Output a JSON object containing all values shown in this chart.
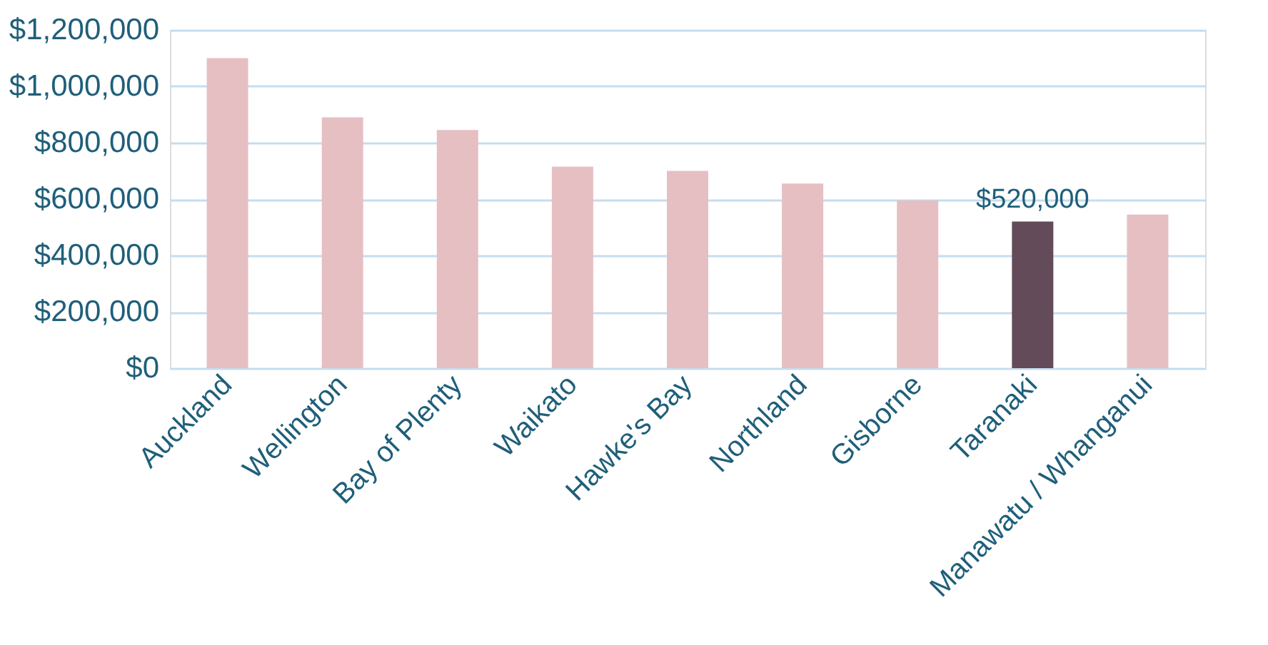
{
  "chart_data": {
    "type": "bar",
    "categories": [
      "Auckland",
      "Wellington",
      "Bay of Plenty",
      "Waikato",
      "Hawke's Bay",
      "Northland",
      "Gisborne",
      "Taranaki",
      "Manawatu / Whanganui"
    ],
    "values": [
      1100000,
      890000,
      845000,
      715000,
      700000,
      655000,
      595000,
      520000,
      545000
    ],
    "colors": [
      "#e6bfc3",
      "#e6bfc3",
      "#e6bfc3",
      "#e6bfc3",
      "#e6bfc3",
      "#e6bfc3",
      "#e6bfc3",
      "#634b5a",
      "#e6bfc3"
    ],
    "value_labels": [
      null,
      null,
      null,
      null,
      null,
      null,
      null,
      "$520,000",
      null
    ],
    "ylim": [
      0,
      1200000
    ],
    "yticks": [
      {
        "value": 0,
        "label": "$0"
      },
      {
        "value": 200000,
        "label": "$200,000"
      },
      {
        "value": 400000,
        "label": "$400,000"
      },
      {
        "value": 600000,
        "label": "$600,000"
      },
      {
        "value": 800000,
        "label": "$800,000"
      },
      {
        "value": 1000000,
        "label": "$1,000,000"
      },
      {
        "value": 1200000,
        "label": "$1,200,000"
      }
    ],
    "grid": "y"
  }
}
